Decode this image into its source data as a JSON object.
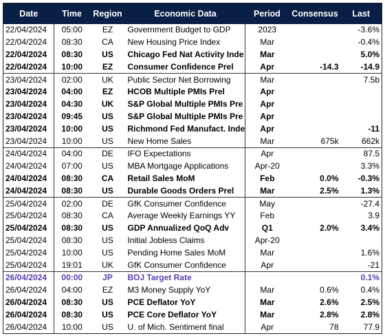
{
  "headers": {
    "date": "Date",
    "time": "Time",
    "region": "Region",
    "data": "Economic Data",
    "period": "Period",
    "consensus": "Consensus",
    "last": "Last"
  },
  "rows": [
    {
      "date": "22/04/2024",
      "time": "05:00",
      "region": "EZ",
      "event": "Government Budget to GDP",
      "period": "2023",
      "consensus": "",
      "last": "-3.6%",
      "style": "normal",
      "day_start": true
    },
    {
      "date": "22/04/2024",
      "time": "08:30",
      "region": "CA",
      "event": "New Housing Price Index",
      "period": "Mar",
      "consensus": "",
      "last": "-0.4%",
      "style": "normal"
    },
    {
      "date": "22/04/2024",
      "time": "08:30",
      "region": "US",
      "event": "Chicago Fed Nat Activity Inde",
      "period": "Mar",
      "consensus": "",
      "last": "5.0%",
      "style": "bold"
    },
    {
      "date": "22/04/2024",
      "time": "10:00",
      "region": "EZ",
      "event": "Consumer Confidence Prel",
      "period": "Apr",
      "consensus": "-14.3",
      "last": "-14.9",
      "style": "bold"
    },
    {
      "date": "23/04/2024",
      "time": "02:00",
      "region": "UK",
      "event": "Public Sector Net Borrowing",
      "period": "Mar",
      "consensus": "",
      "last": "7.5b",
      "style": "normal",
      "day_start": true
    },
    {
      "date": "23/04/2024",
      "time": "04:00",
      "region": "EZ",
      "event": "HCOB Multiple PMIs Prel",
      "period": "Apr",
      "consensus": "",
      "last": "",
      "style": "bold"
    },
    {
      "date": "23/04/2024",
      "time": "04:30",
      "region": "UK",
      "event": "S&P Global Multiple PMIs Pre",
      "period": "Apr",
      "consensus": "",
      "last": "",
      "style": "bold"
    },
    {
      "date": "23/04/2024",
      "time": "09:45",
      "region": "US",
      "event": "S&P Global Multiple PMIs Pre",
      "period": "Apr",
      "consensus": "",
      "last": "",
      "style": "bold"
    },
    {
      "date": "23/04/2024",
      "time": "10:00",
      "region": "US",
      "event": "Richmond Fed Manufact. Inde",
      "period": "Apr",
      "consensus": "",
      "last": "-11",
      "style": "bold"
    },
    {
      "date": "23/04/2024",
      "time": "10:00",
      "region": "US",
      "event": "New Home Sales",
      "period": "Mar",
      "consensus": "675k",
      "last": "662k",
      "style": "normal"
    },
    {
      "date": "24/04/2024",
      "time": "04:00",
      "region": "DE",
      "event": "IFO Expectations",
      "period": "Apr",
      "consensus": "",
      "last": "87.5",
      "style": "normal",
      "day_start": true
    },
    {
      "date": "24/04/2024",
      "time": "07:00",
      "region": "US",
      "event": "MBA Mortgage Applications",
      "period": "Apr-20",
      "consensus": "",
      "last": "3.3%",
      "style": "normal"
    },
    {
      "date": "24/04/2024",
      "time": "08:30",
      "region": "CA",
      "event": "Retail Sales MoM",
      "period": "Feb",
      "consensus": "0.0%",
      "last": "-0.3%",
      "style": "bold"
    },
    {
      "date": "24/04/2024",
      "time": "08:30",
      "region": "US",
      "event": "Durable Goods Orders Prel",
      "period": "Mar",
      "consensus": "2.5%",
      "last": "1.3%",
      "style": "bold"
    },
    {
      "date": "25/04/2024",
      "time": "02:00",
      "region": "DE",
      "event": "GfK Consumer Confidence",
      "period": "May",
      "consensus": "",
      "last": "-27.4",
      "style": "normal",
      "day_start": true
    },
    {
      "date": "25/04/2024",
      "time": "08:30",
      "region": "CA",
      "event": "Average Weekly Earnings YY",
      "period": "Feb",
      "consensus": "",
      "last": "3.9",
      "style": "normal"
    },
    {
      "date": "25/04/2024",
      "time": "08:30",
      "region": "US",
      "event": "GDP Annualized QoQ Adv",
      "period": "Q1",
      "consensus": "2.0%",
      "last": "3.4%",
      "style": "bold"
    },
    {
      "date": "25/04/2024",
      "time": "08:30",
      "region": "US",
      "event": "Initial Jobless Claims",
      "period": "Apr-20",
      "consensus": "",
      "last": "",
      "style": "normal"
    },
    {
      "date": "25/04/2024",
      "time": "10:00",
      "region": "US",
      "event": "Pending Home Sales MoM",
      "period": "Mar",
      "consensus": "",
      "last": "1.6%",
      "style": "normal"
    },
    {
      "date": "25/04/2024",
      "time": "19:01",
      "region": "UK",
      "event": "GfK Consumer Confidence",
      "period": "Apr",
      "consensus": "",
      "last": "-21",
      "style": "normal"
    },
    {
      "date": "26/04/2024",
      "time": "00:00",
      "region": "JP",
      "event": "BOJ Target Rate",
      "period": "",
      "consensus": "",
      "last": "0.1%",
      "style": "purple",
      "day_start": true
    },
    {
      "date": "26/04/2024",
      "time": "04:00",
      "region": "EZ",
      "event": "M3 Money Supply YoY",
      "period": "Mar",
      "consensus": "0.6%",
      "last": "0.4%",
      "style": "normal"
    },
    {
      "date": "26/04/2024",
      "time": "08:30",
      "region": "US",
      "event": "PCE Deflator YoY",
      "period": "Mar",
      "consensus": "2.6%",
      "last": "2.5%",
      "style": "bold"
    },
    {
      "date": "26/04/2024",
      "time": "08:30",
      "region": "US",
      "event": "PCE Core Deflator YoY",
      "period": "Mar",
      "consensus": "2.8%",
      "last": "2.8%",
      "style": "bold"
    },
    {
      "date": "26/04/2024",
      "time": "10:00",
      "region": "US",
      "event": "U. of Mich. Sentiment final",
      "period": "Apr",
      "consensus": "78",
      "last": "77.9",
      "style": "normal"
    }
  ]
}
